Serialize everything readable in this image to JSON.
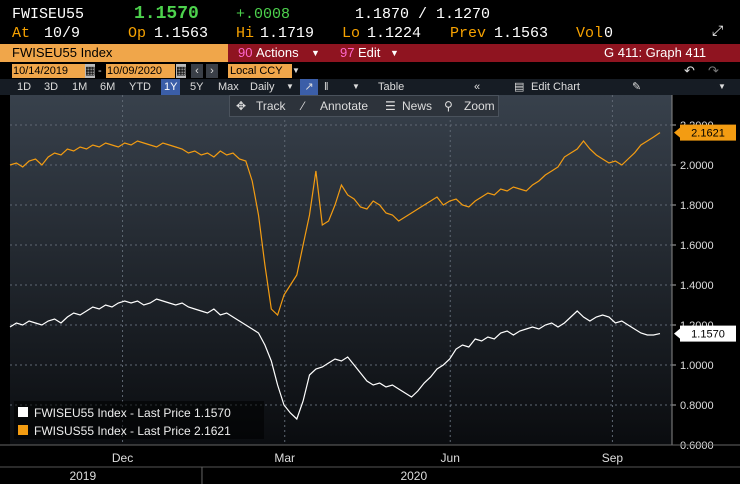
{
  "header": {
    "ticker": "FWISEU55",
    "last": "1.1570",
    "change": "+.0008",
    "bid_ask": "1.1870 / 1.1270",
    "at_label": "At",
    "at_value": "10/9",
    "op_label": "Op",
    "op_value": "1.1563",
    "hi_label": "Hi",
    "hi_value": "1.1719",
    "lo_label": "Lo",
    "lo_value": "1.1224",
    "prev_label": "Prev",
    "prev_value": "1.1563",
    "vol_label": "Vol",
    "vol_value": "0"
  },
  "menubar": {
    "security": "FWISEU55 Index",
    "actions_num": "90",
    "actions": "Actions",
    "edit_num": "97",
    "edit": "Edit",
    "graph": "G 411: Graph 411"
  },
  "daterow": {
    "start": "10/14/2019",
    "end": "10/09/2020",
    "currency": "Local CCY"
  },
  "periods": [
    "1D",
    "3D",
    "1M",
    "6M",
    "YTD",
    "1Y",
    "5Y",
    "Max"
  ],
  "selected_period": "1Y",
  "period_row": {
    "freq": "Daily",
    "table": "Table",
    "edit_chart": "Edit Chart"
  },
  "toolbar": {
    "track": "Track",
    "annotate": "Annotate",
    "news": "News",
    "zoom": "Zoom"
  },
  "colors": {
    "fwiseu55": "#ffffff",
    "fwisus55": "#f39c12",
    "menubar": "#8f1420",
    "selected": "#3b5ea8"
  },
  "chart_data": {
    "type": "line",
    "ylim": [
      0.6,
      2.3
    ],
    "yticks": [
      "0.6000",
      "0.8000",
      "1.0000",
      "1.2000",
      "1.4000",
      "1.6000",
      "1.8000",
      "2.0000",
      "2.2000"
    ],
    "x_month_labels": [
      "Dec",
      "Mar",
      "Jun",
      "Sep"
    ],
    "x_year_labels": [
      "2019",
      "2020"
    ],
    "grid": true,
    "legend_position": "bottom-left",
    "series": [
      {
        "name": "FWISEU55 Index - Last Price 1.1570",
        "last_label": "1.1570",
        "color": "#ffffff",
        "values": [
          1.19,
          1.21,
          1.2,
          1.22,
          1.21,
          1.2,
          1.22,
          1.23,
          1.21,
          1.24,
          1.26,
          1.25,
          1.27,
          1.29,
          1.28,
          1.3,
          1.29,
          1.31,
          1.32,
          1.31,
          1.32,
          1.3,
          1.31,
          1.33,
          1.32,
          1.31,
          1.3,
          1.31,
          1.29,
          1.28,
          1.27,
          1.26,
          1.28,
          1.25,
          1.26,
          1.24,
          1.22,
          1.2,
          1.18,
          1.16,
          1.1,
          1.02,
          0.9,
          0.8,
          0.76,
          0.73,
          0.82,
          0.95,
          0.98,
          0.99,
          1.01,
          1.03,
          1.02,
          1.04,
          1.0,
          0.96,
          0.92,
          0.9,
          0.91,
          0.89,
          0.9,
          0.88,
          0.86,
          0.84,
          0.87,
          0.91,
          0.94,
          0.98,
          1.0,
          1.03,
          1.08,
          1.1,
          1.09,
          1.13,
          1.12,
          1.14,
          1.13,
          1.16,
          1.17,
          1.15,
          1.17,
          1.18,
          1.19,
          1.18,
          1.2,
          1.21,
          1.19,
          1.21,
          1.24,
          1.27,
          1.24,
          1.22,
          1.24,
          1.25,
          1.24,
          1.21,
          1.22,
          1.2,
          1.18,
          1.16,
          1.15,
          1.15,
          1.157
        ]
      },
      {
        "name": "FWISUS55 Index - Last Price 2.1621",
        "last_label": "2.1621",
        "color": "#f39c12",
        "values": [
          2.0,
          2.01,
          1.99,
          2.02,
          2.03,
          2.0,
          2.04,
          2.06,
          2.05,
          2.08,
          2.07,
          2.09,
          2.08,
          2.1,
          2.09,
          2.11,
          2.1,
          2.09,
          2.11,
          2.1,
          2.12,
          2.11,
          2.1,
          2.09,
          2.11,
          2.1,
          2.09,
          2.08,
          2.06,
          2.07,
          2.05,
          2.06,
          2.04,
          2.07,
          2.05,
          2.06,
          2.03,
          2.02,
          1.92,
          1.75,
          1.5,
          1.28,
          1.25,
          1.35,
          1.4,
          1.45,
          1.6,
          1.75,
          1.97,
          1.7,
          1.72,
          1.8,
          1.9,
          1.85,
          1.83,
          1.79,
          1.78,
          1.82,
          1.8,
          1.76,
          1.75,
          1.72,
          1.74,
          1.76,
          1.78,
          1.8,
          1.82,
          1.84,
          1.8,
          1.82,
          1.83,
          1.8,
          1.79,
          1.82,
          1.84,
          1.86,
          1.85,
          1.88,
          1.87,
          1.89,
          1.88,
          1.87,
          1.9,
          1.92,
          1.95,
          1.97,
          1.99,
          2.04,
          2.06,
          2.08,
          2.12,
          2.08,
          2.05,
          2.03,
          2.01,
          2.02,
          2.0,
          2.03,
          2.06,
          2.1,
          2.12,
          2.14,
          2.162
        ]
      }
    ]
  }
}
